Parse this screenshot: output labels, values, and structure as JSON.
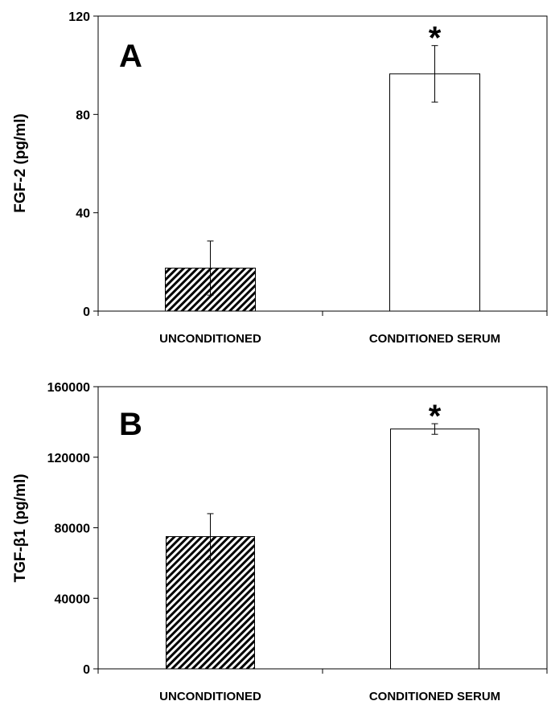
{
  "chart_data": [
    {
      "type": "bar",
      "panel_label": "A",
      "ylabel": "FGF-2 (pg/ml)",
      "xlabel": "",
      "categories": [
        "UNCONDITIONED",
        "CONDITIONED SERUM"
      ],
      "values": [
        17.5,
        96.5
      ],
      "errors": [
        11,
        11.5
      ],
      "patterns": [
        "hatched",
        "open"
      ],
      "significance": [
        "",
        "*"
      ],
      "ylim": [
        0,
        120
      ],
      "yticks": [
        "0",
        "40",
        "80",
        "120"
      ],
      "grid": false,
      "legend": "none"
    },
    {
      "type": "bar",
      "panel_label": "B",
      "ylabel": "TGF-β1 (pg/ml)",
      "xlabel": "",
      "categories": [
        "UNCONDITIONED",
        "CONDITIONED SERUM"
      ],
      "values": [
        75000,
        136000
      ],
      "errors": [
        13000,
        3000
      ],
      "patterns": [
        "hatched",
        "open"
      ],
      "significance": [
        "",
        "*"
      ],
      "ylim": [
        0,
        160000
      ],
      "yticks": [
        "0",
        "40000",
        "80000",
        "120000",
        "160000"
      ],
      "grid": false,
      "legend": "none"
    }
  ]
}
